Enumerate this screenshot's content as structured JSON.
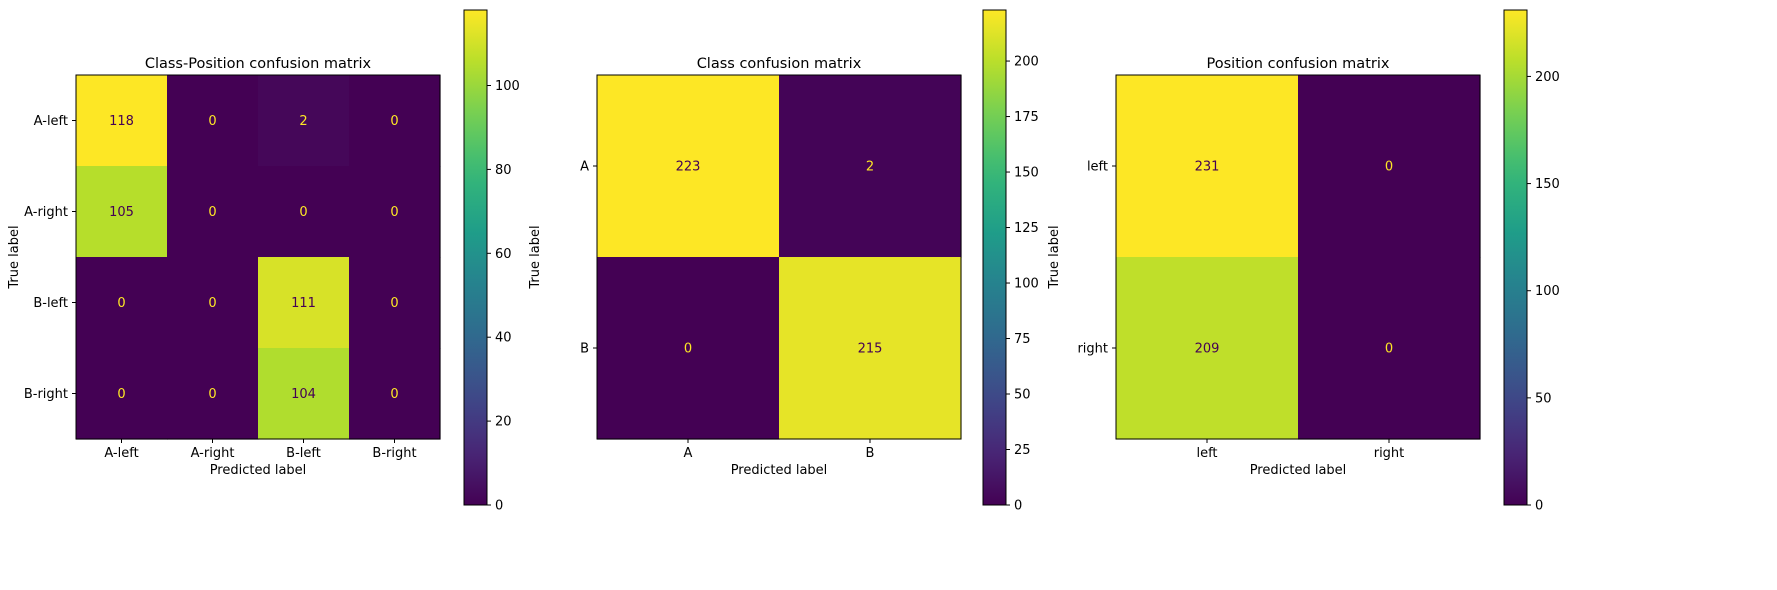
{
  "chart_data": [
    {
      "type": "heatmap",
      "title": "Class-Position confusion matrix",
      "xlabel": "Predicted label",
      "ylabel": "True label",
      "x_categories": [
        "A-left",
        "A-right",
        "B-left",
        "B-right"
      ],
      "y_categories": [
        "A-left",
        "A-right",
        "B-left",
        "B-right"
      ],
      "values": [
        [
          118,
          0,
          2,
          0
        ],
        [
          105,
          0,
          0,
          0
        ],
        [
          0,
          0,
          111,
          0
        ],
        [
          0,
          0,
          104,
          0
        ]
      ],
      "colorbar": {
        "min": 0,
        "max": 118,
        "ticks": [
          0,
          20,
          40,
          60,
          80,
          100
        ],
        "tick_labels": [
          "0",
          "20",
          "40",
          "60",
          "80",
          "100"
        ]
      },
      "colormap": "viridis"
    },
    {
      "type": "heatmap",
      "title": "Class confusion matrix",
      "xlabel": "Predicted label",
      "ylabel": "True label",
      "x_categories": [
        "A",
        "B"
      ],
      "y_categories": [
        "A",
        "B"
      ],
      "values": [
        [
          223,
          2
        ],
        [
          0,
          215
        ]
      ],
      "colorbar": {
        "min": 0,
        "max": 223,
        "ticks": [
          0,
          25,
          50,
          75,
          100,
          125,
          150,
          175,
          200
        ],
        "tick_labels": [
          "0",
          "25",
          "50",
          "75",
          "100",
          "125",
          "150",
          "175",
          "200"
        ]
      },
      "colormap": "viridis"
    },
    {
      "type": "heatmap",
      "title": "Position confusion matrix",
      "xlabel": "Predicted label",
      "ylabel": "True label",
      "x_categories": [
        "left",
        "right"
      ],
      "y_categories": [
        "left",
        "right"
      ],
      "values": [
        [
          231,
          0
        ],
        [
          209,
          0
        ]
      ],
      "colorbar": {
        "min": 0,
        "max": 231,
        "ticks": [
          0,
          50,
          100,
          150,
          200
        ],
        "tick_labels": [
          "0",
          "50",
          "100",
          "150",
          "200"
        ]
      },
      "colormap": "viridis"
    }
  ],
  "colors": {
    "viridis_low": "#440154",
    "viridis_high": "#fde725",
    "text_on_dark": "#fde725",
    "text_on_light": "#440154"
  }
}
